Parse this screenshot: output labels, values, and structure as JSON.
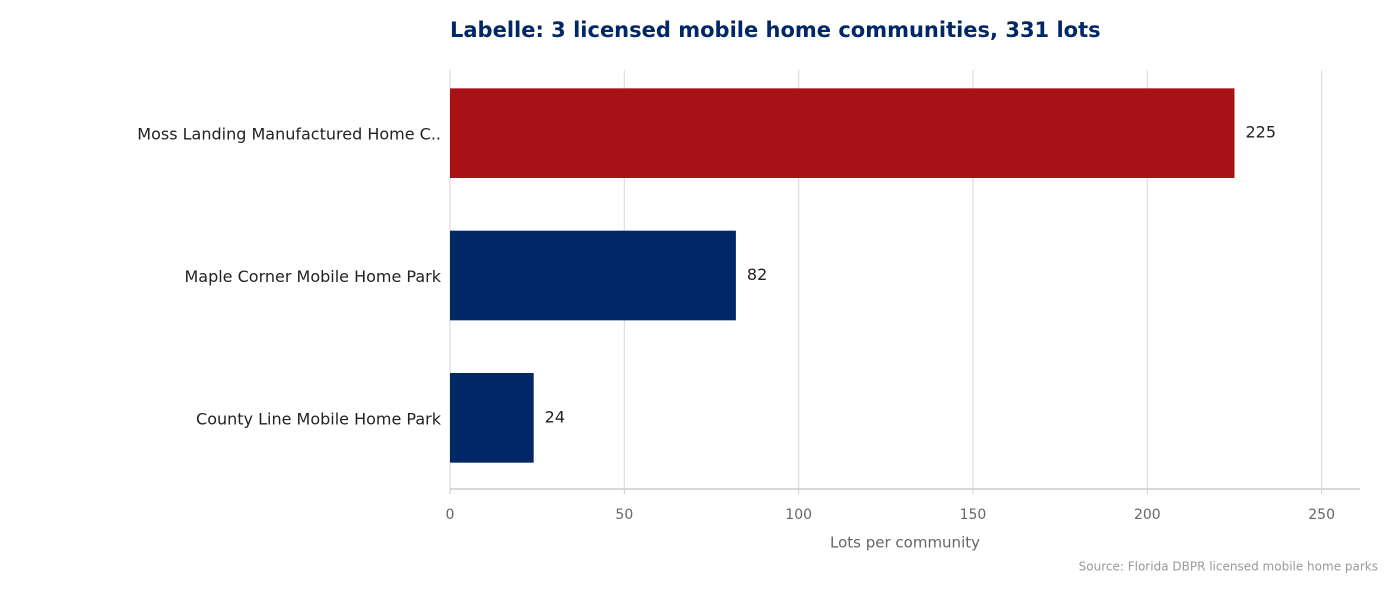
{
  "chart_data": {
    "type": "barh",
    "title": "Labelle: 3 licensed mobile home communities, 331 lots",
    "categories": [
      "Moss Landing Manufactured Home C..",
      "Maple Corner Mobile Home Park",
      "County Line Mobile Home Park"
    ],
    "values": [
      225,
      82,
      24
    ],
    "colors": [
      "#a81116",
      "#012866",
      "#012866"
    ],
    "xlabel": "Lots per community",
    "xlim": [
      0,
      261
    ],
    "xticks": [
      0,
      50,
      100,
      150,
      200,
      250
    ],
    "grid": true,
    "source": "Source: Florida DBPR licensed mobile home parks"
  }
}
